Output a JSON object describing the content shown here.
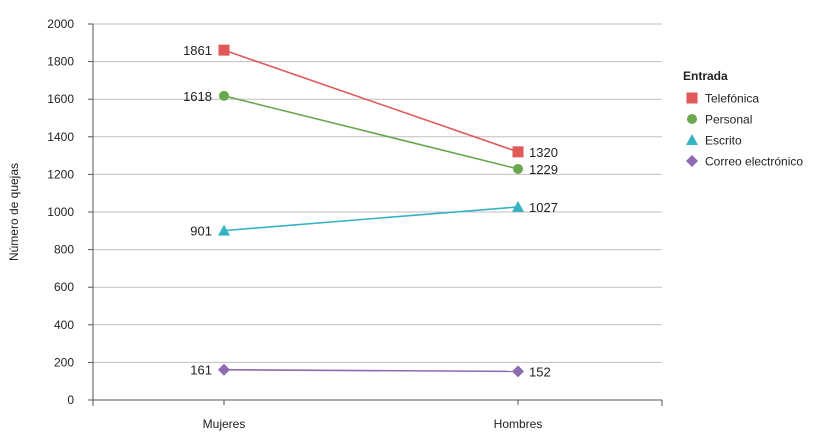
{
  "chart_data": {
    "type": "line",
    "title": "",
    "xlabel": "",
    "ylabel": "Número de quejas",
    "categories": [
      "Mujeres",
      "Hombres"
    ],
    "ylim": [
      0,
      2000
    ],
    "yticks": [
      0,
      200,
      400,
      600,
      800,
      1000,
      1200,
      1400,
      1600,
      1800,
      2000
    ],
    "grid": true,
    "legend": {
      "title": "Entrada",
      "position": "right"
    },
    "series": [
      {
        "name": "Telefónica",
        "values": [
          1861,
          1320
        ],
        "data_labels": [
          "1861",
          "1320"
        ],
        "color": "#e05a5a",
        "marker": "square"
      },
      {
        "name": "Personal",
        "values": [
          1618,
          1229
        ],
        "data_labels": [
          "1618",
          "1229"
        ],
        "color": "#6aa84f",
        "marker": "circle"
      },
      {
        "name": "Escrito",
        "values": [
          901,
          1027
        ],
        "data_labels": [
          "901",
          "1027"
        ],
        "color": "#36b3c2",
        "marker": "triangle"
      },
      {
        "name": "Correo electrónico",
        "values": [
          161,
          152
        ],
        "data_labels": [
          "161",
          "152"
        ],
        "color": "#8e6bb0",
        "marker": "diamond"
      }
    ]
  }
}
